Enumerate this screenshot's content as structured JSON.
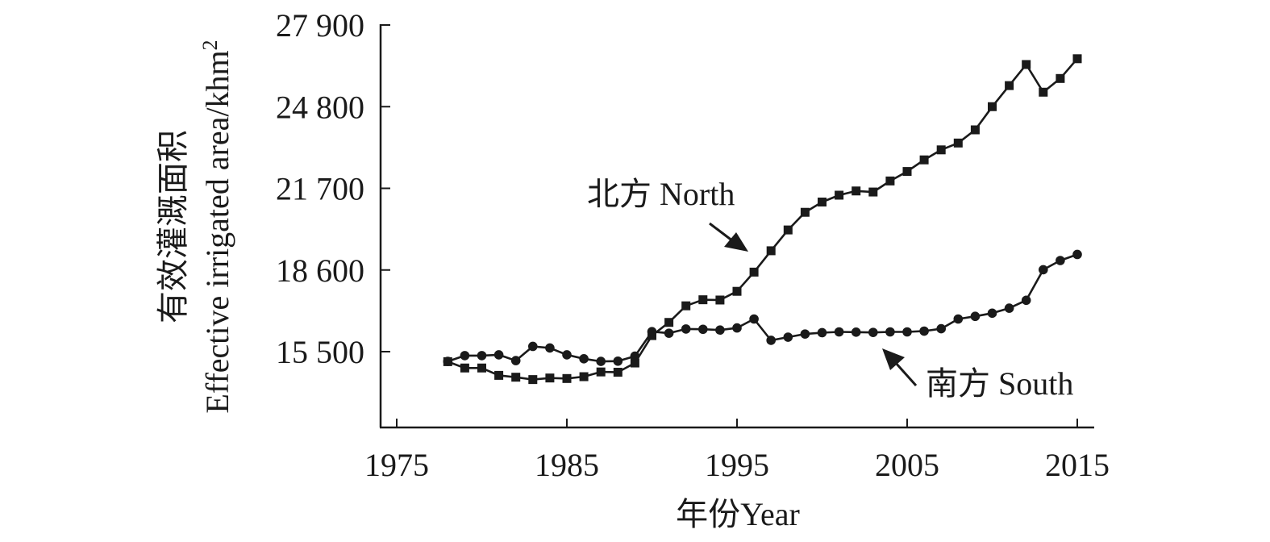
{
  "chart_data": {
    "type": "line",
    "xlabel": "年份Year",
    "ylabel_cn": "有效灌溉面积",
    "ylabel_en": "Effective irrigated area/khm",
    "ylabel_sup": "2",
    "xlim": [
      1973,
      2017
    ],
    "ylim": [
      12600,
      27900
    ],
    "xticks": [
      1975,
      1985,
      1995,
      2005,
      2015
    ],
    "xtick_labels": [
      "1975",
      "1985",
      "1995",
      "2005",
      "2015"
    ],
    "yticks": [
      15500,
      18600,
      21700,
      24800,
      27900
    ],
    "ytick_labels": [
      "15 500",
      "18 600",
      "21 700",
      "24 800",
      "27 900"
    ],
    "grid": false,
    "series": [
      {
        "name": "北方 North",
        "marker": "square",
        "x": [
          1978,
          1979,
          1980,
          1981,
          1982,
          1983,
          1984,
          1985,
          1986,
          1987,
          1988,
          1989,
          1990,
          1991,
          1992,
          1993,
          1994,
          1995,
          1996,
          1997,
          1998,
          1999,
          2000,
          2001,
          2002,
          2003,
          2004,
          2005,
          2006,
          2007,
          2008,
          2009,
          2010,
          2011,
          2012,
          2013,
          2014,
          2015
        ],
        "y": [
          15120,
          14880,
          14880,
          14600,
          14530,
          14440,
          14500,
          14480,
          14550,
          14730,
          14720,
          15070,
          16110,
          16610,
          17240,
          17470,
          17460,
          17790,
          18520,
          19330,
          20120,
          20790,
          21180,
          21440,
          21600,
          21560,
          21980,
          22340,
          22780,
          23160,
          23420,
          23920,
          24800,
          25600,
          26400,
          25350,
          25870,
          26620
        ]
      },
      {
        "name": "南方 South",
        "marker": "circle",
        "x": [
          1978,
          1979,
          1980,
          1981,
          1982,
          1983,
          1984,
          1985,
          1986,
          1987,
          1988,
          1989,
          1990,
          1991,
          1992,
          1993,
          1994,
          1995,
          1996,
          1997,
          1998,
          1999,
          2000,
          2001,
          2002,
          2003,
          2004,
          2005,
          2006,
          2007,
          2008,
          2009,
          2010,
          2011,
          2012,
          2013,
          2014,
          2015
        ],
        "y": [
          15130,
          15350,
          15350,
          15380,
          15160,
          15700,
          15640,
          15380,
          15230,
          15130,
          15140,
          15330,
          16260,
          16200,
          16360,
          16350,
          16320,
          16400,
          16740,
          15930,
          16050,
          16170,
          16220,
          16250,
          16240,
          16230,
          16250,
          16250,
          16280,
          16370,
          16740,
          16840,
          16960,
          17150,
          17450,
          18610,
          18960,
          19190
        ]
      }
    ],
    "annotations": [
      {
        "text": "北方 North",
        "series": "北方 North"
      },
      {
        "text": "南方 South",
        "series": "南方 South"
      }
    ]
  }
}
